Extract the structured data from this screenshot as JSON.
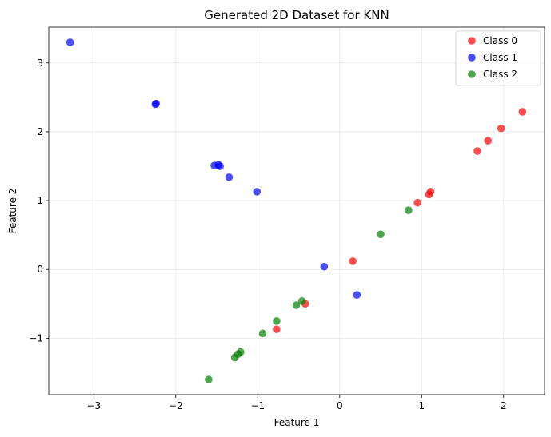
{
  "chart_data": {
    "type": "scatter",
    "title": "Generated 2D Dataset for KNN",
    "xlabel": "Feature 1",
    "ylabel": "Feature 2",
    "xlim": [
      -3.55,
      2.5
    ],
    "ylim": [
      -1.82,
      3.52
    ],
    "x_ticks": [
      -3,
      -2,
      -1,
      0,
      1,
      2
    ],
    "y_ticks": [
      -1,
      0,
      1,
      2,
      3
    ],
    "x_tick_labels": [
      "−3",
      "−2",
      "−1",
      "0",
      "1",
      "2"
    ],
    "y_tick_labels": [
      "−1",
      "0",
      "1",
      "2",
      "3"
    ],
    "grid": true,
    "legend_position": "top-right",
    "series": [
      {
        "name": "Class 0",
        "color": "#ff0000",
        "points": [
          [
            2.23,
            2.29
          ],
          [
            1.97,
            2.05
          ],
          [
            1.81,
            1.87
          ],
          [
            1.68,
            1.72
          ],
          [
            1.11,
            1.13
          ],
          [
            1.09,
            1.09
          ],
          [
            0.95,
            0.97
          ],
          [
            0.16,
            0.12
          ],
          [
            -0.42,
            -0.5
          ],
          [
            -0.77,
            -0.87
          ]
        ]
      },
      {
        "name": "Class 1",
        "color": "#0000ff",
        "points": [
          [
            -3.29,
            3.3
          ],
          [
            -2.24,
            2.41
          ],
          [
            -2.25,
            2.4
          ],
          [
            -1.53,
            1.51
          ],
          [
            -1.48,
            1.52
          ],
          [
            -1.46,
            1.5
          ],
          [
            -1.35,
            1.34
          ],
          [
            -1.01,
            1.13
          ],
          [
            -0.19,
            0.04
          ],
          [
            0.21,
            -0.37
          ]
        ]
      },
      {
        "name": "Class 2",
        "color": "#008000",
        "points": [
          [
            0.84,
            0.86
          ],
          [
            0.5,
            0.51
          ],
          [
            -0.46,
            -0.46
          ],
          [
            -0.53,
            -0.52
          ],
          [
            -0.77,
            -0.75
          ],
          [
            -0.94,
            -0.93
          ],
          [
            -1.21,
            -1.2
          ],
          [
            -1.24,
            -1.23
          ],
          [
            -1.28,
            -1.28
          ],
          [
            -1.6,
            -1.6
          ]
        ]
      }
    ]
  }
}
